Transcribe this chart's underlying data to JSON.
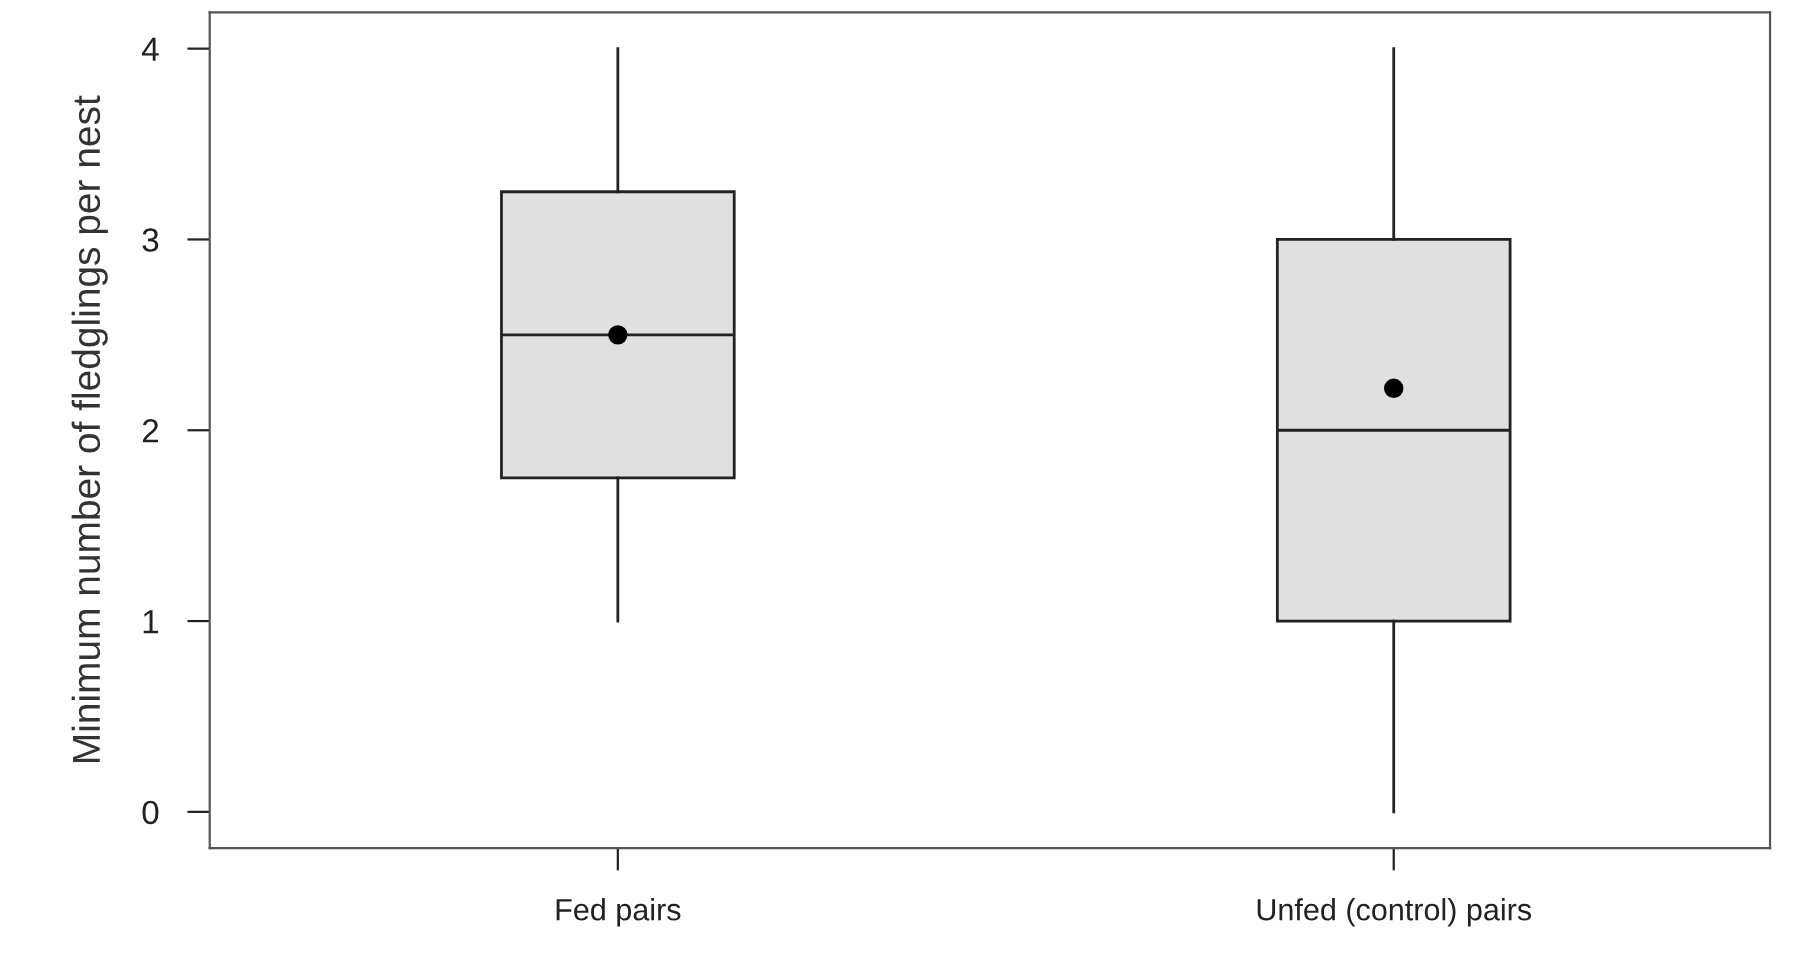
{
  "chart_data": {
    "type": "box",
    "ylabel": "Minimum number of fledglings per nest",
    "categories": [
      "Fed pairs",
      "Unfed (control) pairs"
    ],
    "boxes": [
      {
        "low": 1,
        "q1": 1.75,
        "median": 2.5,
        "q3": 3.25,
        "high": 4,
        "mean": 2.5
      },
      {
        "low": 0,
        "q1": 1,
        "median": 2,
        "q3": 3,
        "high": 4,
        "mean": 2.22
      }
    ],
    "color": "#e0e0e0",
    "ylim": [
      -0.19,
      4.19
    ],
    "yticks": [
      0,
      1,
      2,
      3,
      4
    ],
    "grid": false
  }
}
